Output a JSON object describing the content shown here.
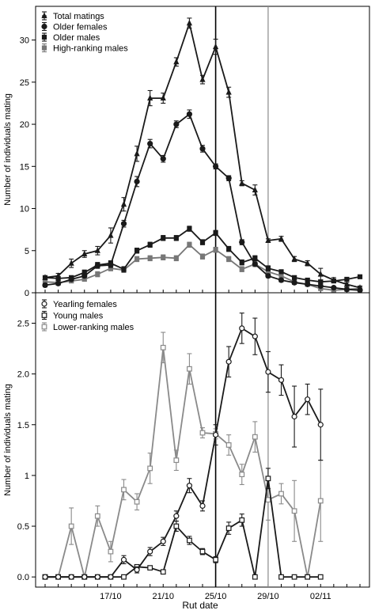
{
  "figure": {
    "xlabel": "Rut date",
    "x_tick_labels": [
      {
        "label": "17/10",
        "day": 5
      },
      {
        "label": "21/10",
        "day": 9
      },
      {
        "label": "25/10",
        "day": 13
      },
      {
        "label": "29/10",
        "day": 17
      },
      {
        "label": "02/11",
        "day": 21
      }
    ],
    "x_domain": [
      0,
      24
    ],
    "reference_lines": [
      {
        "day": 13,
        "style": "dark"
      },
      {
        "day": 17,
        "style": "light"
      }
    ]
  },
  "chart_data": [
    {
      "type": "line",
      "ylabel": "Number of individuals mating",
      "ylim": [
        0,
        34
      ],
      "y_ticks": [
        0,
        5,
        10,
        15,
        20,
        25,
        30
      ],
      "x": [
        0,
        1,
        2,
        3,
        4,
        5,
        6,
        7,
        8,
        9,
        10,
        11,
        12,
        13,
        14,
        15,
        16,
        17,
        18,
        19,
        20,
        21,
        22,
        23,
        24
      ],
      "legend_position": "top-left",
      "series": [
        {
          "name": "Total matings",
          "marker": "triangle",
          "color": "#1a1a1a",
          "values": [
            1.8,
            2.0,
            3.5,
            4.6,
            5.0,
            6.8,
            10.5,
            16.5,
            23.1,
            23.1,
            27.4,
            32.0,
            25.3,
            29.2,
            23.8,
            13.0,
            12.2,
            6.2,
            6.4,
            4.0,
            3.5,
            2.2,
            1.5,
            1.0,
            0.6
          ],
          "errors": [
            0.2,
            0.3,
            0.5,
            0.4,
            0.5,
            0.9,
            0.8,
            0.9,
            0.9,
            0.6,
            0.5,
            0.6,
            0.5,
            0.9,
            0.6,
            0.3,
            0.6,
            0.2,
            0.3,
            0.3,
            0.3,
            0.7,
            0.3,
            0.2,
            0.2
          ]
        },
        {
          "name": "Older females",
          "marker": "circle",
          "color": "#1a1a1a",
          "values": [
            0.9,
            1.1,
            1.6,
            2.0,
            3.2,
            3.3,
            8.2,
            13.2,
            17.7,
            15.9,
            20.0,
            21.2,
            17.1,
            15.0,
            13.6,
            6.0,
            3.4,
            2.0,
            1.5,
            1.2,
            1.0,
            0.8,
            0.6,
            0.4,
            0.3
          ],
          "errors": [
            0.2,
            0.2,
            0.2,
            0.2,
            0.3,
            0.3,
            0.4,
            0.6,
            0.5,
            0.4,
            0.4,
            0.5,
            0.4,
            0.3,
            0.3,
            0.3,
            0.2,
            0.2,
            0.2,
            0.2,
            0.1,
            0.1,
            0.1,
            0.1,
            0.1
          ]
        },
        {
          "name": "Older males",
          "marker": "square",
          "color": "#1a1a1a",
          "values": [
            1.8,
            1.7,
            1.8,
            2.4,
            3.3,
            3.5,
            2.8,
            5.0,
            5.7,
            6.5,
            6.5,
            7.6,
            6.0,
            7.1,
            5.2,
            3.6,
            4.1,
            2.9,
            2.5,
            1.8,
            1.5,
            1.3,
            1.4,
            1.6,
            1.9
          ],
          "errors": [
            0.2,
            0.2,
            0.2,
            0.3,
            0.3,
            0.3,
            0.3,
            0.3,
            0.3,
            0.3,
            0.3,
            0.3,
            0.3,
            0.3,
            0.3,
            0.3,
            0.3,
            0.3,
            0.2,
            0.2,
            0.2,
            0.2,
            0.2,
            0.2,
            0.2
          ]
        },
        {
          "name": "High-ranking males",
          "marker": "square",
          "color": "#777777",
          "values": [
            1.3,
            1.2,
            1.4,
            1.6,
            2.2,
            2.9,
            2.7,
            4.0,
            4.1,
            4.2,
            4.1,
            5.7,
            4.3,
            5.1,
            4.0,
            2.8,
            3.4,
            2.5,
            2.0,
            1.3,
            1.0,
            0.5,
            0.3,
            0.4,
            0.5
          ],
          "errors": [
            0.2,
            0.2,
            0.2,
            0.2,
            0.3,
            0.3,
            0.3,
            0.3,
            0.3,
            0.3,
            0.3,
            0.3,
            0.3,
            0.3,
            0.3,
            0.3,
            0.3,
            0.3,
            0.2,
            0.2,
            0.2,
            0.2,
            0.2,
            0.2,
            0.2
          ]
        }
      ]
    },
    {
      "type": "line",
      "ylabel": "Number of individuals mating",
      "ylim": [
        -0.1,
        2.8
      ],
      "y_ticks": [
        0.0,
        0.5,
        1.0,
        1.5,
        2.0,
        2.5
      ],
      "y_tick_labels": [
        "0.0",
        "0.5",
        "1",
        "1.5",
        "2.0",
        "2.5"
      ],
      "x": [
        0,
        1,
        2,
        3,
        4,
        5,
        6,
        7,
        8,
        9,
        10,
        11,
        12,
        13,
        14,
        15,
        16,
        17,
        18,
        19,
        20,
        21,
        22,
        23,
        24
      ],
      "legend_position": "top-left",
      "series": [
        {
          "name": "Yearling females",
          "marker": "open-circle",
          "color": "#1a1a1a",
          "values": [
            0,
            0,
            0,
            0,
            0,
            0,
            0.17,
            0.07,
            0.25,
            0.35,
            0.6,
            0.9,
            0.7,
            1.4,
            2.12,
            2.45,
            2.37,
            2.02,
            1.94,
            1.58,
            1.75,
            1.5,
            null,
            null,
            null
          ],
          "errors": [
            0,
            0,
            0,
            0,
            0,
            0,
            0.04,
            0.03,
            0.04,
            0.04,
            0.05,
            0.07,
            0.05,
            0.1,
            0.15,
            0.15,
            0.18,
            0.2,
            0.15,
            0.3,
            0.15,
            0.35,
            null,
            null,
            null
          ]
        },
        {
          "name": "Young males",
          "marker": "open-square",
          "color": "#1a1a1a",
          "values": [
            0,
            0,
            0,
            0,
            0,
            0,
            0,
            0.1,
            0.09,
            0.05,
            0.5,
            0.36,
            0.25,
            0.17,
            0.48,
            0.56,
            0,
            0.97,
            0,
            0,
            0,
            0,
            null,
            null,
            null
          ],
          "errors": [
            0,
            0,
            0,
            0,
            0,
            0,
            0,
            0.02,
            0.02,
            0.02,
            0.05,
            0.04,
            0.03,
            0.03,
            0.06,
            0.06,
            0,
            0.1,
            0,
            0,
            0,
            0,
            null,
            null,
            null
          ]
        },
        {
          "name": "Lower-ranking males",
          "marker": "open-square",
          "color": "#8a8a8a",
          "values": [
            0,
            0,
            0.5,
            0,
            0.6,
            0.25,
            0.86,
            0.74,
            1.07,
            2.26,
            1.15,
            2.05,
            1.42,
            1.41,
            1.3,
            1.01,
            1.38,
            0.76,
            0.82,
            0.65,
            0,
            0.75,
            null,
            null,
            null
          ],
          "errors": [
            0,
            0,
            0.18,
            0,
            0.1,
            0.1,
            0.1,
            0.08,
            0.15,
            0.15,
            0.1,
            0.15,
            0.05,
            0.05,
            0.1,
            0.1,
            0.15,
            0.2,
            0.1,
            0.3,
            0,
            0.4,
            null,
            null,
            null
          ]
        }
      ]
    }
  ]
}
